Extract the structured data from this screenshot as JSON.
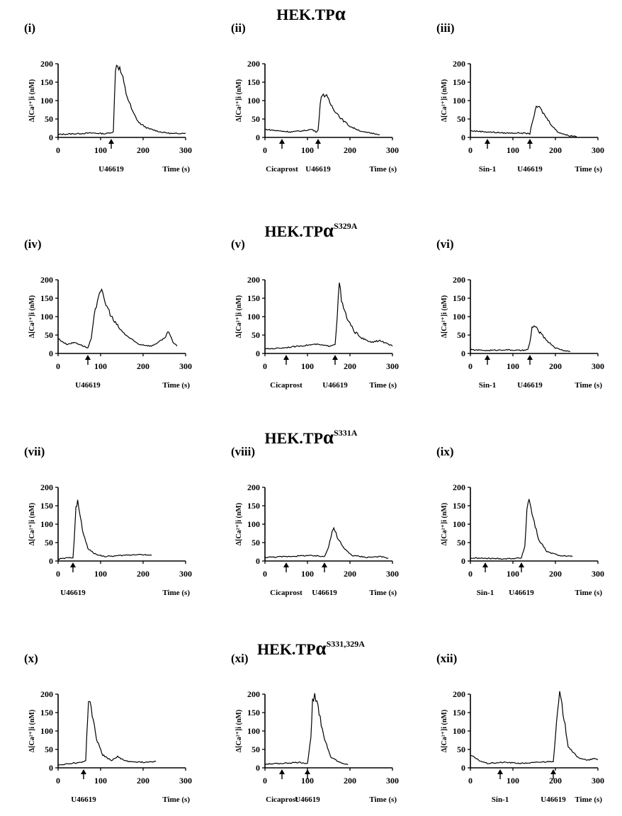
{
  "rows": [
    {
      "title": "HEK.TP",
      "alpha": "α",
      "sup": ""
    },
    {
      "title": "HEK.TP",
      "alpha": "α",
      "sup": "S329A"
    },
    {
      "title": "HEK.TP",
      "alpha": "α",
      "sup": "S331A"
    },
    {
      "title": "HEK.TP",
      "alpha": "α",
      "sup": "S331,329A"
    }
  ],
  "chart_data": [
    {
      "type": "line",
      "panel": "(i)",
      "ylabel": "Δ[Ca²⁺]i (nM)",
      "xlabel": "Time (s)",
      "xlim": [
        0,
        300
      ],
      "ylim": [
        0,
        200
      ],
      "x_ticks": [
        0,
        100,
        200,
        300
      ],
      "y_ticks": [
        0,
        50,
        100,
        150,
        200
      ],
      "arrows": [
        {
          "x": 125,
          "label": ""
        }
      ],
      "agent_labels": [
        "U46619"
      ],
      "series": [
        {
          "points": [
            [
              0,
              8
            ],
            [
              40,
              10
            ],
            [
              80,
              12
            ],
            [
              110,
              10
            ],
            [
              120,
              12
            ],
            [
              130,
              15
            ],
            [
              135,
              190
            ],
            [
              140,
              200
            ],
            [
              150,
              170
            ],
            [
              160,
              120
            ],
            [
              175,
              70
            ],
            [
              190,
              40
            ],
            [
              210,
              25
            ],
            [
              240,
              15
            ],
            [
              270,
              10
            ],
            [
              300,
              12
            ]
          ]
        }
      ]
    },
    {
      "type": "line",
      "panel": "(ii)",
      "ylabel": "Δ[Ca²⁺]i (nM)",
      "xlabel": "Time (s)",
      "xlim": [
        0,
        300
      ],
      "ylim": [
        0,
        200
      ],
      "x_ticks": [
        0,
        100,
        200,
        300
      ],
      "y_ticks": [
        0,
        50,
        100,
        150,
        200
      ],
      "arrows": [
        {
          "x": 40,
          "label": "Cicaprost"
        },
        {
          "x": 125,
          "label": "U46619"
        }
      ],
      "agent_labels": [
        "Cicaprost",
        "U46619"
      ],
      "series": [
        {
          "points": [
            [
              0,
              22
            ],
            [
              30,
              18
            ],
            [
              60,
              15
            ],
            [
              90,
              18
            ],
            [
              110,
              22
            ],
            [
              120,
              15
            ],
            [
              125,
              20
            ],
            [
              130,
              90
            ],
            [
              135,
              120
            ],
            [
              145,
              110
            ],
            [
              160,
              80
            ],
            [
              180,
              50
            ],
            [
              200,
              30
            ],
            [
              230,
              15
            ],
            [
              260,
              10
            ],
            [
              270,
              8
            ]
          ]
        }
      ]
    },
    {
      "type": "line",
      "panel": "(iii)",
      "ylabel": "Δ[Ca²⁺]i (nM)",
      "xlabel": "Time (s)",
      "xlim": [
        0,
        300
      ],
      "ylim": [
        0,
        200
      ],
      "x_ticks": [
        0,
        100,
        200,
        300
      ],
      "y_ticks": [
        0,
        50,
        100,
        150,
        200
      ],
      "arrows": [
        {
          "x": 40,
          "label": "Sin-1"
        },
        {
          "x": 140,
          "label": "U46619"
        }
      ],
      "agent_labels": [
        "Sin-1",
        "U46619"
      ],
      "series": [
        {
          "points": [
            [
              0,
              18
            ],
            [
              40,
              15
            ],
            [
              80,
              12
            ],
            [
              120,
              12
            ],
            [
              140,
              10
            ],
            [
              145,
              40
            ],
            [
              155,
              80
            ],
            [
              160,
              85
            ],
            [
              175,
              60
            ],
            [
              190,
              35
            ],
            [
              205,
              15
            ],
            [
              230,
              5
            ],
            [
              250,
              3
            ]
          ]
        }
      ]
    },
    {
      "type": "line",
      "panel": "(iv)",
      "ylabel": "Δ[Ca²⁺]i (nM)",
      "xlabel": "Time (s)",
      "xlim": [
        0,
        300
      ],
      "ylim": [
        0,
        200
      ],
      "x_ticks": [
        0,
        100,
        200,
        300
      ],
      "y_ticks": [
        0,
        50,
        100,
        150,
        200
      ],
      "arrows": [
        {
          "x": 70,
          "label": ""
        }
      ],
      "agent_labels": [
        "U46619"
      ],
      "series": [
        {
          "points": [
            [
              0,
              40
            ],
            [
              20,
              25
            ],
            [
              40,
              30
            ],
            [
              60,
              20
            ],
            [
              70,
              15
            ],
            [
              78,
              40
            ],
            [
              85,
              100
            ],
            [
              95,
              160
            ],
            [
              100,
              175
            ],
            [
              110,
              140
            ],
            [
              130,
              90
            ],
            [
              150,
              60
            ],
            [
              170,
              40
            ],
            [
              190,
              25
            ],
            [
              220,
              20
            ],
            [
              250,
              40
            ],
            [
              260,
              60
            ],
            [
              270,
              30
            ],
            [
              280,
              20
            ]
          ]
        }
      ]
    },
    {
      "type": "line",
      "panel": "(v)",
      "ylabel": "Δ[Ca²⁺]i (nM)",
      "xlabel": "Time (s)",
      "xlim": [
        0,
        300
      ],
      "ylim": [
        0,
        200
      ],
      "x_ticks": [
        0,
        100,
        200,
        300
      ],
      "y_ticks": [
        0,
        50,
        100,
        150,
        200
      ],
      "arrows": [
        {
          "x": 50,
          "label": "Cicaprost"
        },
        {
          "x": 165,
          "label": "U46619"
        }
      ],
      "agent_labels": [
        "Cicaprost",
        "U46619"
      ],
      "series": [
        {
          "points": [
            [
              0,
              12
            ],
            [
              40,
              15
            ],
            [
              80,
              20
            ],
            [
              120,
              25
            ],
            [
              150,
              20
            ],
            [
              165,
              25
            ],
            [
              170,
              100
            ],
            [
              175,
              195
            ],
            [
              180,
              140
            ],
            [
              195,
              90
            ],
            [
              210,
              60
            ],
            [
              230,
              40
            ],
            [
              250,
              30
            ],
            [
              270,
              35
            ],
            [
              290,
              25
            ],
            [
              300,
              20
            ]
          ]
        }
      ]
    },
    {
      "type": "line",
      "panel": "(vi)",
      "ylabel": "Δ[Ca²⁺]i (nM)",
      "xlabel": "Time (s)",
      "xlim": [
        0,
        300
      ],
      "ylim": [
        0,
        200
      ],
      "x_ticks": [
        0,
        100,
        200,
        300
      ],
      "y_ticks": [
        0,
        50,
        100,
        150,
        200
      ],
      "arrows": [
        {
          "x": 40,
          "label": "Sin-1"
        },
        {
          "x": 140,
          "label": "U46619"
        }
      ],
      "agent_labels": [
        "Sin-1",
        "U46619"
      ],
      "series": [
        {
          "points": [
            [
              0,
              10
            ],
            [
              40,
              8
            ],
            [
              80,
              10
            ],
            [
              120,
              8
            ],
            [
              135,
              10
            ],
            [
              140,
              30
            ],
            [
              145,
              70
            ],
            [
              150,
              75
            ],
            [
              165,
              55
            ],
            [
              180,
              35
            ],
            [
              200,
              15
            ],
            [
              220,
              8
            ],
            [
              235,
              5
            ]
          ]
        }
      ]
    },
    {
      "type": "line",
      "panel": "(vii)",
      "ylabel": "Δ[Ca²⁺]i (nM)",
      "xlabel": "Time (s)",
      "xlim": [
        0,
        300
      ],
      "ylim": [
        0,
        200
      ],
      "x_ticks": [
        0,
        100,
        200,
        300
      ],
      "y_ticks": [
        0,
        50,
        100,
        150,
        200
      ],
      "arrows": [
        {
          "x": 35,
          "label": ""
        }
      ],
      "agent_labels": [
        "U46619"
      ],
      "series": [
        {
          "points": [
            [
              0,
              5
            ],
            [
              20,
              8
            ],
            [
              35,
              10
            ],
            [
              38,
              60
            ],
            [
              42,
              140
            ],
            [
              46,
              165
            ],
            [
              52,
              120
            ],
            [
              60,
              70
            ],
            [
              70,
              35
            ],
            [
              85,
              20
            ],
            [
              110,
              12
            ],
            [
              150,
              15
            ],
            [
              190,
              18
            ],
            [
              220,
              15
            ]
          ]
        }
      ]
    },
    {
      "type": "line",
      "panel": "(viii)",
      "ylabel": "Δ[Ca²⁺]i (nM)",
      "xlabel": "Time (s)",
      "xlim": [
        0,
        300
      ],
      "ylim": [
        0,
        200
      ],
      "x_ticks": [
        0,
        100,
        200,
        300
      ],
      "y_ticks": [
        0,
        50,
        100,
        150,
        200
      ],
      "arrows": [
        {
          "x": 50,
          "label": "Cicaprost"
        },
        {
          "x": 140,
          "label": "U46619"
        }
      ],
      "agent_labels": [
        "Cicaprost",
        "U46619"
      ],
      "series": [
        {
          "points": [
            [
              0,
              10
            ],
            [
              50,
              12
            ],
            [
              100,
              15
            ],
            [
              140,
              12
            ],
            [
              150,
              40
            ],
            [
              158,
              80
            ],
            [
              162,
              90
            ],
            [
              170,
              65
            ],
            [
              185,
              35
            ],
            [
              205,
              15
            ],
            [
              240,
              10
            ],
            [
              270,
              12
            ],
            [
              290,
              8
            ]
          ]
        }
      ]
    },
    {
      "type": "line",
      "panel": "(ix)",
      "ylabel": "Δ[Ca²⁺]i (nM)",
      "xlabel": "Time (s)",
      "xlim": [
        0,
        300
      ],
      "ylim": [
        0,
        200
      ],
      "x_ticks": [
        0,
        100,
        200,
        300
      ],
      "y_ticks": [
        0,
        50,
        100,
        150,
        200
      ],
      "arrows": [
        {
          "x": 35,
          "label": "Sin-1"
        },
        {
          "x": 120,
          "label": "U46619"
        }
      ],
      "agent_labels": [
        "Sin-1",
        "U46619"
      ],
      "series": [
        {
          "points": [
            [
              0,
              8
            ],
            [
              40,
              7
            ],
            [
              80,
              6
            ],
            [
              120,
              8
            ],
            [
              128,
              40
            ],
            [
              133,
              140
            ],
            [
              138,
              170
            ],
            [
              145,
              130
            ],
            [
              160,
              60
            ],
            [
              180,
              25
            ],
            [
              210,
              15
            ],
            [
              240,
              12
            ]
          ]
        }
      ]
    },
    {
      "type": "line",
      "panel": "(x)",
      "ylabel": "Δ[Ca²⁺]i (nM)",
      "xlabel": "Time (s)",
      "xlim": [
        0,
        300
      ],
      "ylim": [
        0,
        200
      ],
      "x_ticks": [
        0,
        100,
        200,
        300
      ],
      "y_ticks": [
        0,
        50,
        100,
        150,
        200
      ],
      "arrows": [
        {
          "x": 60,
          "label": ""
        }
      ],
      "agent_labels": [
        "U46619"
      ],
      "series": [
        {
          "points": [
            [
              0,
              8
            ],
            [
              30,
              12
            ],
            [
              55,
              15
            ],
            [
              65,
              20
            ],
            [
              70,
              150
            ],
            [
              73,
              190
            ],
            [
              78,
              160
            ],
            [
              90,
              80
            ],
            [
              105,
              35
            ],
            [
              125,
              20
            ],
            [
              140,
              30
            ],
            [
              160,
              18
            ],
            [
              200,
              15
            ],
            [
              230,
              18
            ]
          ]
        }
      ]
    },
    {
      "type": "line",
      "panel": "(xi)",
      "ylabel": "Δ[Ca²⁺]i (nM)",
      "xlabel": "Time (s)",
      "xlim": [
        0,
        300
      ],
      "ylim": [
        0,
        200
      ],
      "x_ticks": [
        0,
        100,
        200,
        300
      ],
      "y_ticks": [
        0,
        50,
        100,
        150,
        200
      ],
      "arrows": [
        {
          "x": 40,
          "label": "Cicaprost"
        },
        {
          "x": 100,
          "label": "U46619"
        }
      ],
      "agent_labels": [
        "Cicaprost",
        "U46619"
      ],
      "series": [
        {
          "points": [
            [
              0,
              10
            ],
            [
              40,
              12
            ],
            [
              80,
              15
            ],
            [
              100,
              12
            ],
            [
              108,
              80
            ],
            [
              112,
              190
            ],
            [
              117,
              195
            ],
            [
              125,
              160
            ],
            [
              140,
              80
            ],
            [
              155,
              30
            ],
            [
              175,
              15
            ],
            [
              195,
              8
            ]
          ]
        }
      ]
    },
    {
      "type": "line",
      "panel": "(xii)",
      "ylabel": "Δ[Ca²⁺]i (nM)",
      "xlabel": "Time (s)",
      "xlim": [
        0,
        300
      ],
      "ylim": [
        0,
        200
      ],
      "x_ticks": [
        0,
        100,
        200,
        300
      ],
      "y_ticks": [
        0,
        50,
        100,
        150,
        200
      ],
      "arrows": [
        {
          "x": 70,
          "label": "Sin-1"
        },
        {
          "x": 195,
          "label": "U46619"
        }
      ],
      "agent_labels": [
        "Sin-1",
        "U46619"
      ],
      "series": [
        {
          "points": [
            [
              0,
              35
            ],
            [
              20,
              20
            ],
            [
              40,
              12
            ],
            [
              80,
              15
            ],
            [
              120,
              12
            ],
            [
              160,
              15
            ],
            [
              195,
              18
            ],
            [
              205,
              150
            ],
            [
              210,
              200
            ],
            [
              218,
              150
            ],
            [
              230,
              60
            ],
            [
              250,
              30
            ],
            [
              275,
              20
            ],
            [
              290,
              25
            ],
            [
              300,
              22
            ]
          ]
        }
      ]
    }
  ]
}
